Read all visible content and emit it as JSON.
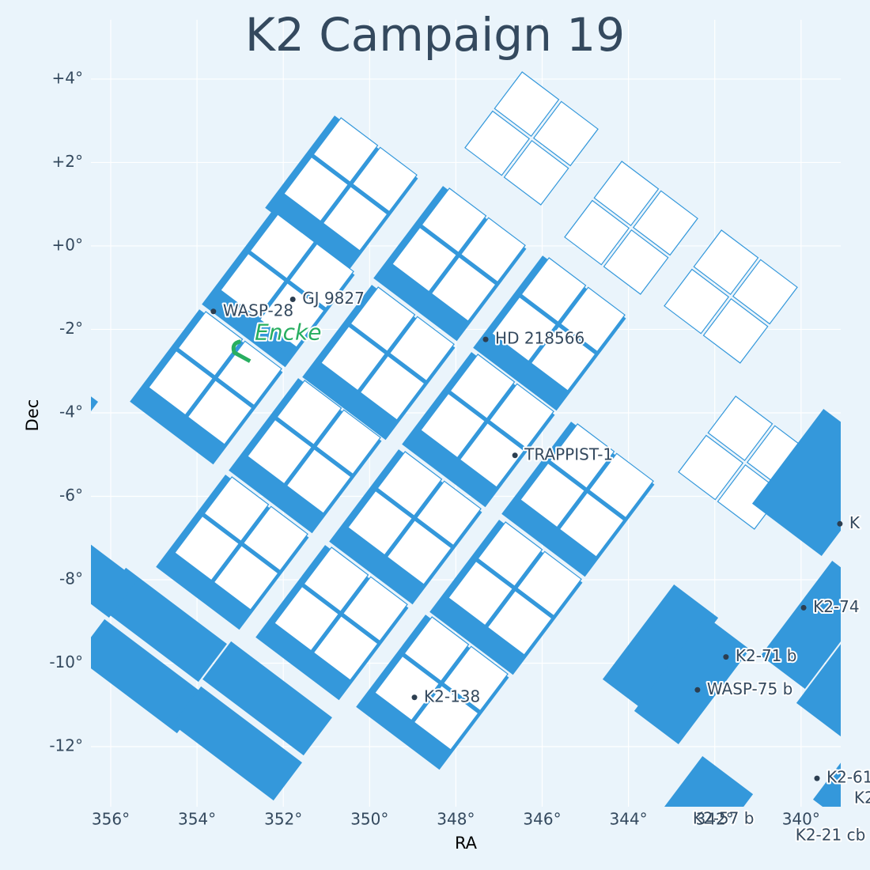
{
  "chart_data": {
    "type": "scatter",
    "title": "K2 Campaign 19",
    "x_label": "RA",
    "y_label": "Dec",
    "xlim": [
      356.458,
      339.08
    ],
    "ylim": [
      -13.44,
      5.42
    ],
    "xticks": [
      {
        "value": 356,
        "label": "356°"
      },
      {
        "value": 354,
        "label": "354°"
      },
      {
        "value": 352,
        "label": "352°"
      },
      {
        "value": 350,
        "label": "350°"
      },
      {
        "value": 348,
        "label": "348°"
      },
      {
        "value": 346,
        "label": "346°"
      },
      {
        "value": 344,
        "label": "344°"
      },
      {
        "value": 342,
        "label": "342°"
      },
      {
        "value": 340,
        "label": "340°"
      }
    ],
    "yticks": [
      {
        "value": 4,
        "label": "+4°"
      },
      {
        "value": 2,
        "label": "+2°"
      },
      {
        "value": 0,
        "label": "+0°"
      },
      {
        "value": -2,
        "label": "-2°"
      },
      {
        "value": -4,
        "label": "-4°"
      },
      {
        "value": -6,
        "label": "-6°"
      },
      {
        "value": -8,
        "label": "-8°"
      },
      {
        "value": -10,
        "label": "-10°"
      },
      {
        "value": -12,
        "label": "-12°"
      }
    ],
    "grid": true,
    "color": "#2c3e50",
    "points": [
      {
        "label": "WASP-28",
        "x": 353.62,
        "y": -1.57
      },
      {
        "label": "GJ 9827",
        "x": 351.78,
        "y": -1.28
      },
      {
        "label": "HD 218566",
        "x": 347.31,
        "y": -2.24
      },
      {
        "label": "TRAPPIST-1",
        "x": 346.63,
        "y": -5.02
      },
      {
        "label": "K2-138",
        "x": 348.96,
        "y": -10.82
      },
      {
        "label": "WASP-75 b",
        "x": 342.4,
        "y": -10.64
      },
      {
        "label": "K2-71 b",
        "x": 341.74,
        "y": -9.85
      },
      {
        "label": "K2-74",
        "x": 339.94,
        "y": -8.67
      },
      {
        "label": "K",
        "x": 339.1,
        "y": -6.66
      },
      {
        "label": "K2-61",
        "x": 339.63,
        "y": -12.76
      },
      {
        "label": "K2",
        "x": 338.99,
        "y": -13.25
      },
      {
        "label": "K2-57 b",
        "x": 342.73,
        "y": -13.74
      },
      {
        "label": "K2-21 cb",
        "x": 340.35,
        "y": -14.14
      }
    ],
    "annotation": {
      "text": "Encke",
      "x": 352.66,
      "y": -2.1,
      "color": "#27ae60"
    }
  }
}
